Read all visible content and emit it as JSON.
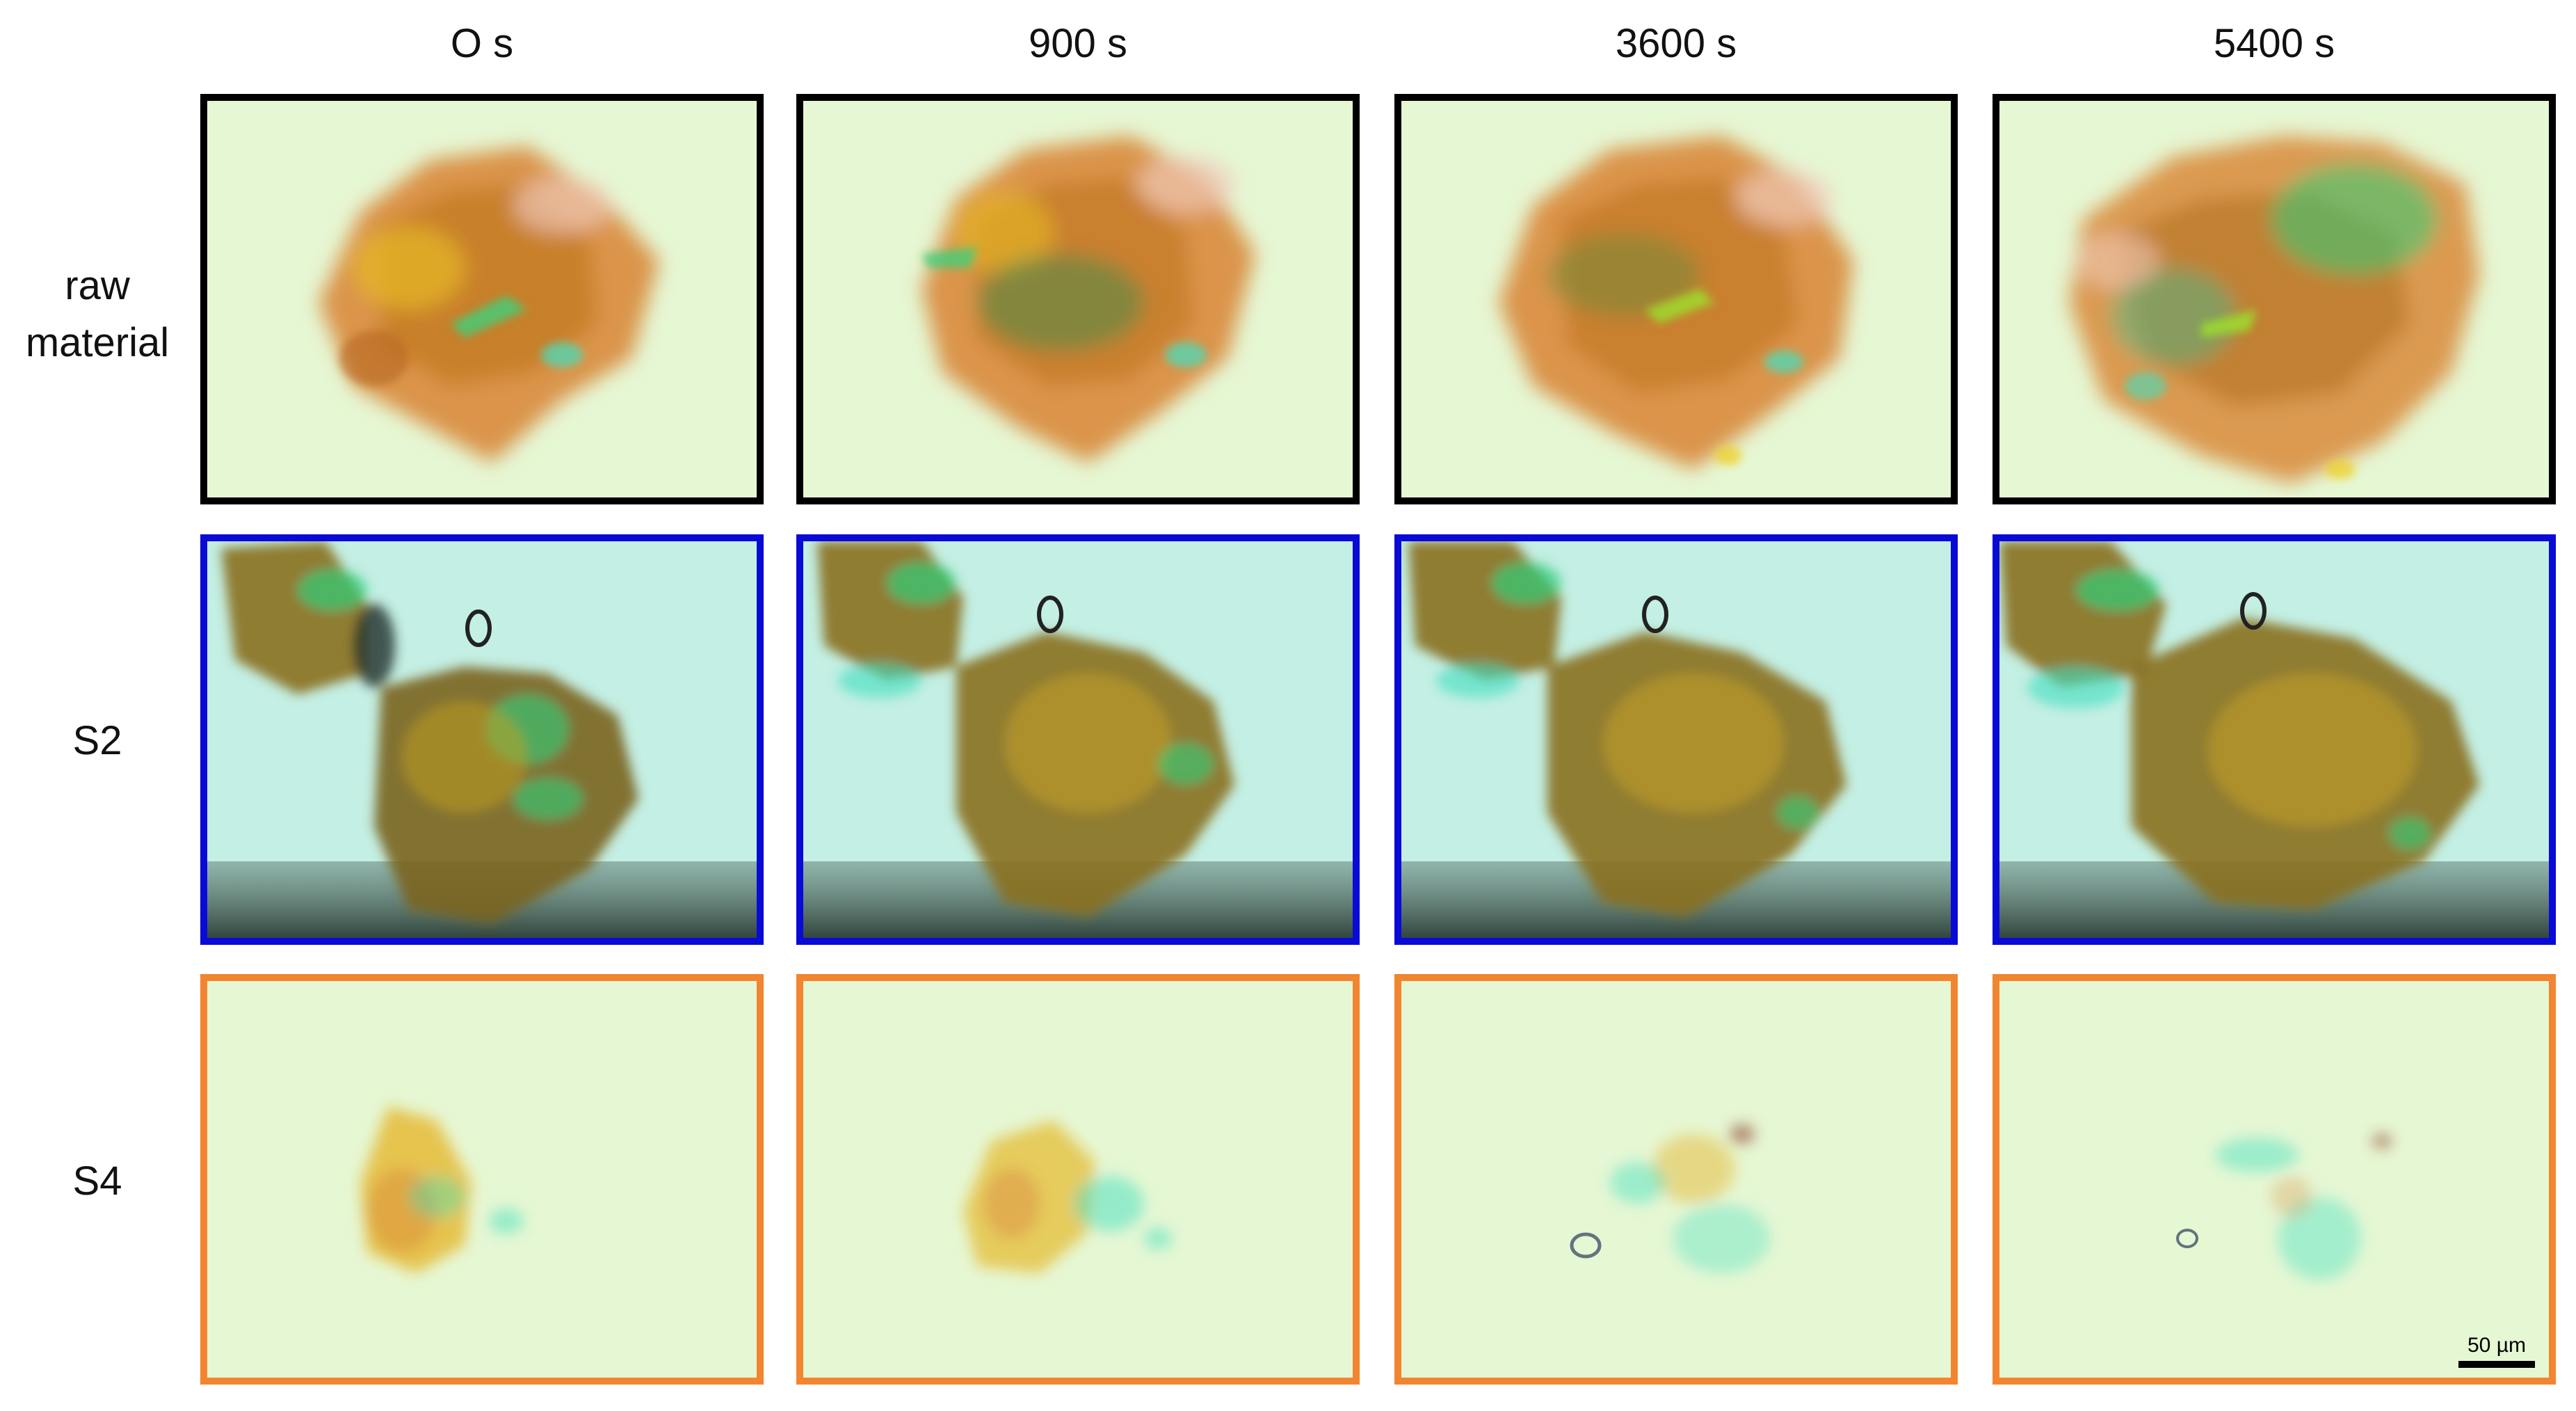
{
  "columns": [
    {
      "label": "O s"
    },
    {
      "label": "900 s"
    },
    {
      "label": "3600 s"
    },
    {
      "label": "5400 s"
    }
  ],
  "rows": [
    {
      "label_line1": "raw",
      "label_line2": "material",
      "border_color": "#000000",
      "background": "#e6f7d4"
    },
    {
      "label_line1": "S2",
      "label_line2": "",
      "border_color": "#0a0ad6",
      "background": "#c4efe4"
    },
    {
      "label_line1": "S4",
      "label_line2": "",
      "border_color": "#f28530",
      "background": "#e6f7d4"
    }
  ],
  "scale_bar": {
    "label": "50 µm"
  },
  "colors": {
    "orange_material": "#d9823a",
    "yellow_material": "#e5b320",
    "green_material": "#2fcf7a",
    "dark_material": "#5a4a20",
    "cyan_material": "#3fe0c0"
  }
}
